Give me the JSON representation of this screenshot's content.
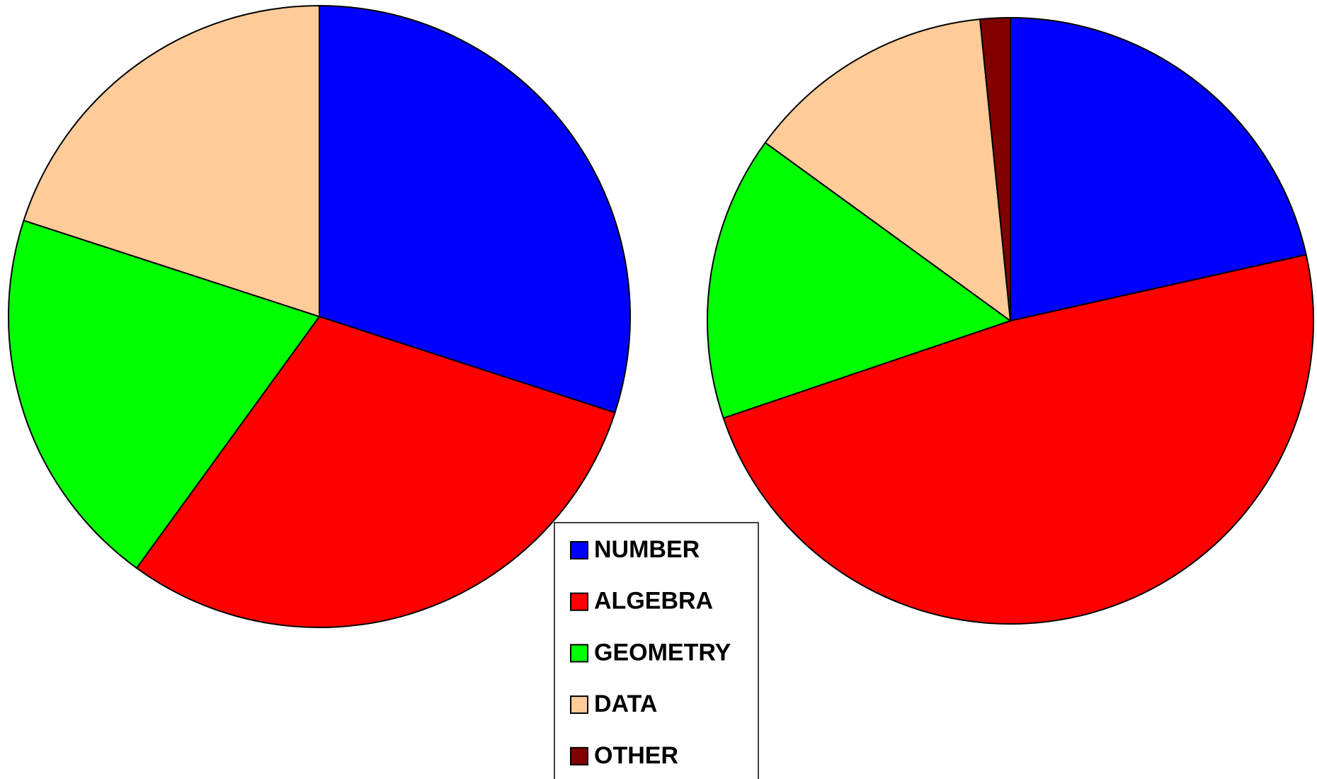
{
  "chart_data": {
    "type": "pie",
    "categories": [
      "NUMBER",
      "ALGEBRA",
      "GEOMETRY",
      "DATA",
      "OTHER"
    ],
    "colors": [
      "#0000ff",
      "#ff0000",
      "#00ff00",
      "#ffcc99",
      "#800000"
    ],
    "series": [
      {
        "values": [
          30,
          30,
          20,
          20,
          0
        ]
      },
      {
        "values": [
          21.5,
          48.3,
          15.2,
          13.4,
          1.6
        ]
      }
    ],
    "legend": true
  }
}
